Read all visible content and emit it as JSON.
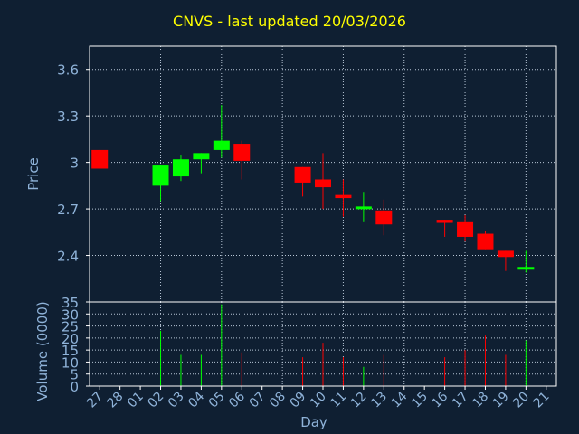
{
  "chart_data": {
    "type": "candlestick",
    "title": "CNVS - last updated 20/03/2026",
    "xlabel": "Day",
    "price_ylabel": "Price",
    "volume_ylabel": "Volume (0000)",
    "price_ylim": [
      2.1,
      3.75
    ],
    "price_ticks": [
      "3.6",
      "3.3",
      "3",
      "2.7",
      "2.4"
    ],
    "price_tick_values": [
      3.6,
      3.3,
      3.0,
      2.7,
      2.4
    ],
    "volume_ylim": [
      0,
      35
    ],
    "volume_ticks": [
      "35",
      "30",
      "25",
      "20",
      "15",
      "10",
      "5",
      "0"
    ],
    "volume_tick_values": [
      35,
      30,
      25,
      20,
      15,
      10,
      5,
      0
    ],
    "day_labels": [
      "27",
      "28",
      "01",
      "02",
      "03",
      "04",
      "05",
      "06",
      "07",
      "08",
      "09",
      "10",
      "11",
      "12",
      "13",
      "14",
      "15",
      "16",
      "17",
      "18",
      "19",
      "20",
      "21"
    ],
    "candles": [
      {
        "day": "27",
        "open": 3.08,
        "close": 2.96,
        "high": 3.08,
        "low": 2.96,
        "volume": 0
      },
      {
        "day": "02",
        "open": 2.85,
        "close": 2.98,
        "high": 2.98,
        "low": 2.75,
        "volume": 23
      },
      {
        "day": "03",
        "open": 2.91,
        "close": 3.02,
        "high": 3.05,
        "low": 2.88,
        "volume": 13
      },
      {
        "day": "04",
        "open": 3.02,
        "close": 3.06,
        "high": 3.06,
        "low": 2.93,
        "volume": 13
      },
      {
        "day": "05",
        "open": 3.08,
        "close": 3.14,
        "high": 3.37,
        "low": 3.03,
        "volume": 34
      },
      {
        "day": "06",
        "open": 3.12,
        "close": 3.01,
        "high": 3.14,
        "low": 2.89,
        "volume": 14
      },
      {
        "day": "09",
        "open": 2.97,
        "close": 2.87,
        "high": 2.97,
        "low": 2.78,
        "volume": 12
      },
      {
        "day": "10",
        "open": 2.89,
        "close": 2.84,
        "high": 3.06,
        "low": 2.7,
        "volume": 18
      },
      {
        "day": "11",
        "open": 2.79,
        "close": 2.77,
        "high": 2.89,
        "low": 2.65,
        "volume": 12
      },
      {
        "day": "12",
        "open": 2.7,
        "close": 2.71,
        "high": 2.81,
        "low": 2.62,
        "volume": 8
      },
      {
        "day": "13",
        "open": 2.69,
        "close": 2.6,
        "high": 2.76,
        "low": 2.53,
        "volume": 13
      },
      {
        "day": "16",
        "open": 2.63,
        "close": 2.61,
        "high": 2.63,
        "low": 2.52,
        "volume": 12
      },
      {
        "day": "17",
        "open": 2.62,
        "close": 2.52,
        "high": 2.66,
        "low": 2.49,
        "volume": 15
      },
      {
        "day": "18",
        "open": 2.54,
        "close": 2.44,
        "high": 2.56,
        "low": 2.44,
        "volume": 21
      },
      {
        "day": "19",
        "open": 2.43,
        "close": 2.39,
        "high": 2.43,
        "low": 2.3,
        "volume": 13
      },
      {
        "day": "20",
        "open": 2.31,
        "close": 2.32,
        "high": 2.43,
        "low": 2.29,
        "volume": 19
      }
    ],
    "colors": {
      "up": "#00ff00",
      "down": "#ff0000",
      "grid": "#b8c6d6",
      "text": "#8fb3d9",
      "title": "#ffff00",
      "background": "#0f1f32",
      "axis": "#ffffff"
    }
  }
}
